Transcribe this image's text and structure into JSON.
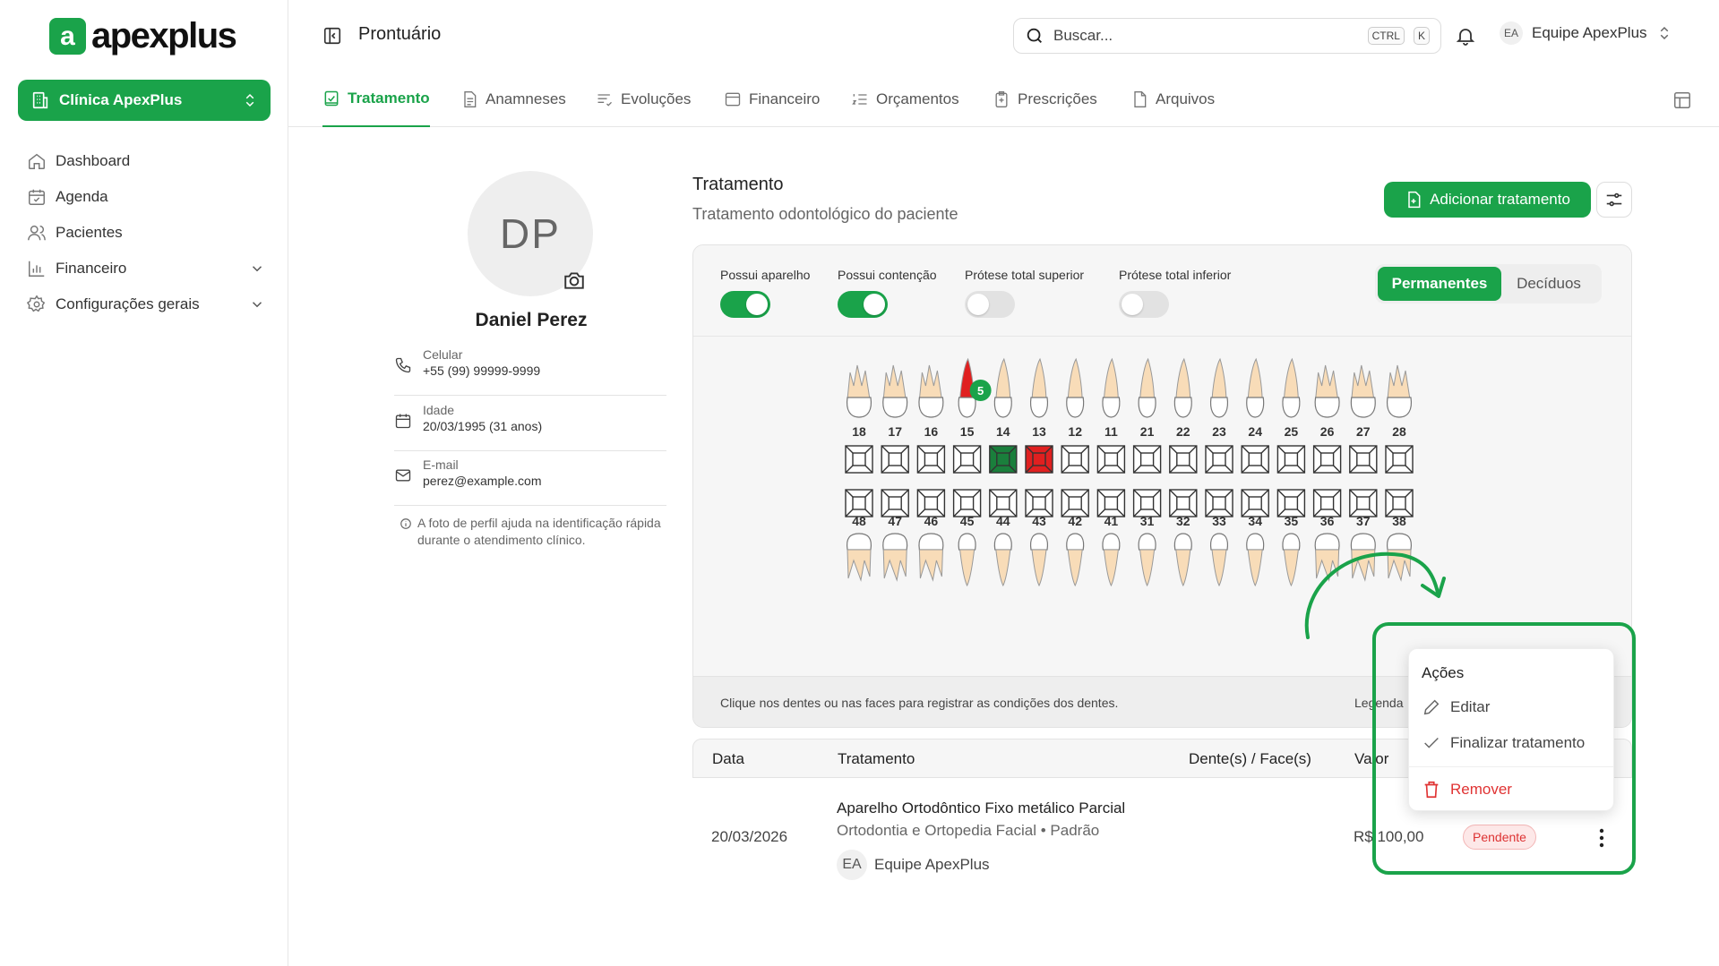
{
  "app": {
    "logo_mark": "a",
    "logo_text": "apexplus",
    "page_title": "Prontuário"
  },
  "sidebar": {
    "clinic": "Clínica ApexPlus",
    "items": [
      {
        "label": "Dashboard",
        "icon": "home-icon"
      },
      {
        "label": "Agenda",
        "icon": "calendar-icon"
      },
      {
        "label": "Pacientes",
        "icon": "users-icon"
      },
      {
        "label": "Financeiro",
        "icon": "chart-icon"
      },
      {
        "label": "Configurações gerais",
        "icon": "gear-icon"
      }
    ]
  },
  "topbar": {
    "search_placeholder": "Buscar...",
    "shortcut_ctrl": "CTRL",
    "shortcut_k": "K",
    "team_initials": "EA",
    "team_name": "Equipe ApexPlus"
  },
  "tabs": [
    "Tratamento",
    "Anamneses",
    "Evoluções",
    "Financeiro",
    "Orçamentos",
    "Prescrições",
    "Arquivos"
  ],
  "patient": {
    "initials": "DP",
    "name": "Daniel Perez",
    "phone_label": "Celular",
    "phone": "+55 (99) 99999-9999",
    "age_label": "Idade",
    "age": "20/03/1995 (31 anos)",
    "email_label": "E-mail",
    "email": "perez@example.com",
    "hint": "A foto de perfil ajuda na identificação rápida durante o atendimento clínico."
  },
  "treatment": {
    "title": "Tratamento",
    "subtitle": "Tratamento odontológico do paciente",
    "add_label": "Adicionar tratamento",
    "toggles": [
      {
        "label": "Possui aparelho",
        "on": true
      },
      {
        "label": "Possui contenção",
        "on": true
      },
      {
        "label": "Prótese total superior",
        "on": false
      },
      {
        "label": "Prótese total inferior",
        "on": false
      }
    ],
    "dentition": {
      "permanent": "Permanentes",
      "deciduous": "Decíduos",
      "selected": "Permanentes"
    },
    "upper_teeth": [
      "18",
      "17",
      "16",
      "15",
      "14",
      "13",
      "12",
      "11",
      "21",
      "22",
      "23",
      "24",
      "25",
      "26",
      "27",
      "28"
    ],
    "lower_teeth": [
      "48",
      "47",
      "46",
      "45",
      "44",
      "43",
      "42",
      "41",
      "31",
      "32",
      "33",
      "34",
      "35",
      "36",
      "37",
      "38"
    ],
    "marked": {
      "14": "#1a7f3c",
      "13": "#e02020"
    },
    "root_marked_tooth": "15",
    "root_badge": "5",
    "footer_hint": "Clique nos dentes ou nas faces para registrar as condições dos dentes.",
    "legend": "Legenda"
  },
  "table": {
    "headers": {
      "date": "Data",
      "treatment": "Tratamento",
      "teeth": "Dente(s) / Face(s)",
      "value": "Valor"
    },
    "rows": [
      {
        "date": "20/03/2026",
        "name": "Aparelho Ortodôntico Fixo metálico Parcial",
        "specialty": "Ortodontia e Ortopedia Facial • Padrão",
        "team_initials": "EA",
        "team": "Equipe ApexPlus",
        "value": "R$ 100,00",
        "status": "Pendente"
      }
    ]
  },
  "actions_menu": {
    "title": "Ações",
    "edit": "Editar",
    "finish": "Finalizar tratamento",
    "remove": "Remover"
  },
  "colors": {
    "accent": "#1aa34a",
    "danger": "#e03333",
    "tooth": "#f8dcb8"
  }
}
